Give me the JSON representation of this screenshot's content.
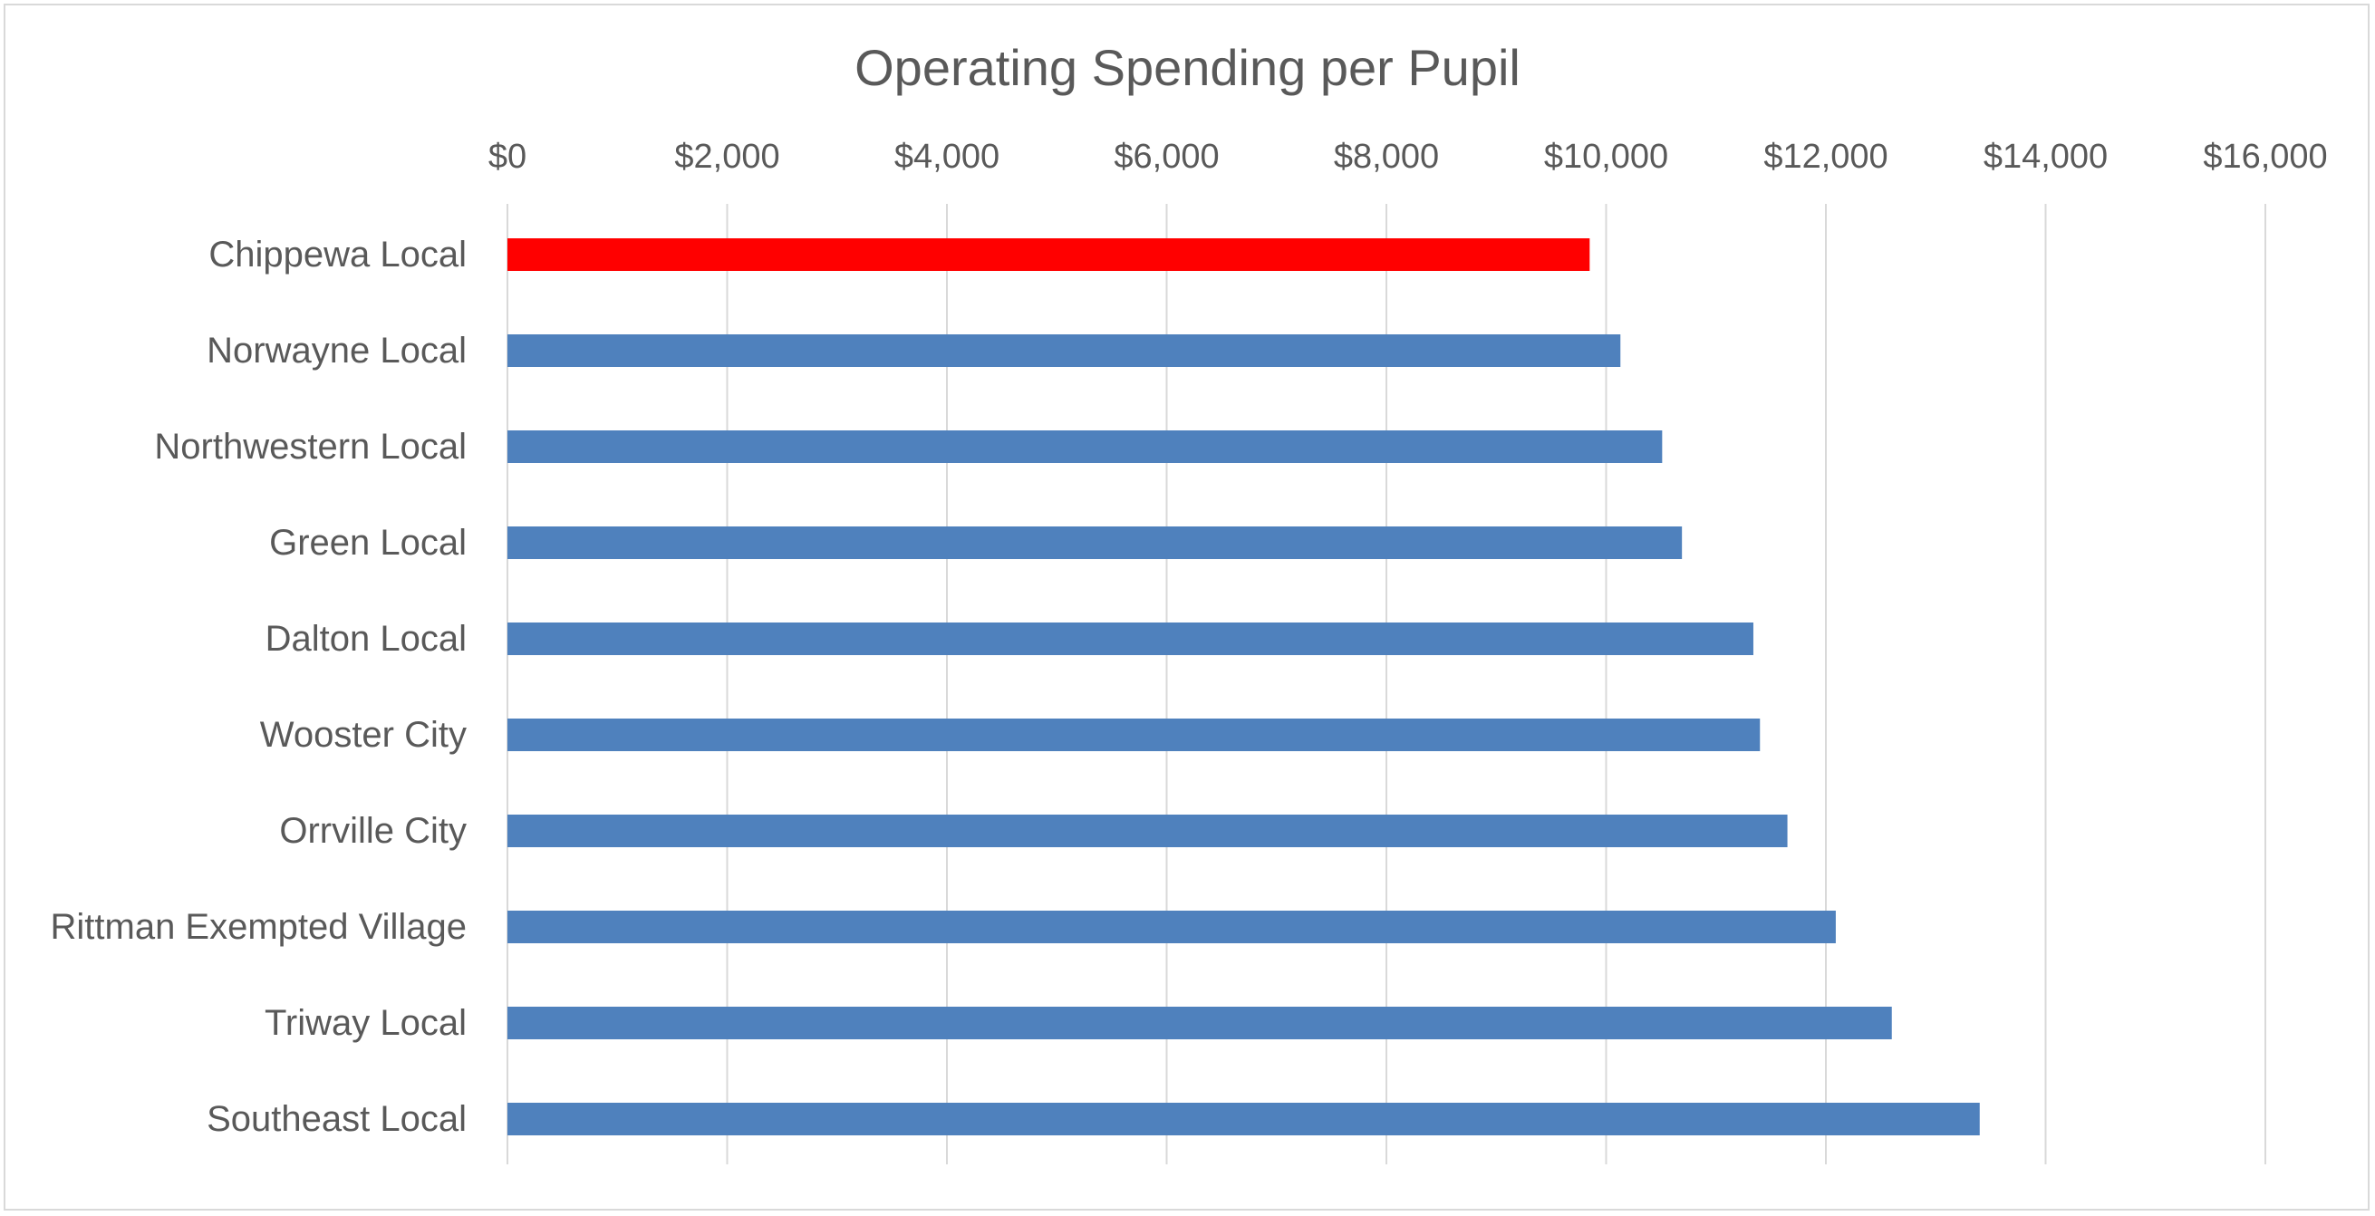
{
  "chart_data": {
    "type": "bar",
    "orientation": "horizontal",
    "title": "Operating Spending per Pupil",
    "xlabel": "",
    "ylabel": "",
    "xlim": [
      0,
      16000
    ],
    "x_axis_position": "top",
    "x_ticks": [
      "$0",
      "$2,000",
      "$4,000",
      "$6,000",
      "$8,000",
      "$10,000",
      "$12,000",
      "$14,000",
      "$16,000"
    ],
    "x_tick_values": [
      0,
      2000,
      4000,
      6000,
      8000,
      10000,
      12000,
      14000,
      16000
    ],
    "grid": true,
    "legend": "none",
    "categories": [
      "Chippewa Local",
      "Norwayne Local",
      "Northwestern Local",
      "Green Local",
      "Dalton Local",
      "Wooster City",
      "Orrville City",
      "Rittman Exempted Village",
      "Triway Local",
      "Southeast Local"
    ],
    "values": [
      9850,
      10130,
      10510,
      10690,
      11340,
      11400,
      11650,
      12090,
      12600,
      13400
    ],
    "colors": [
      "#ff0000",
      "#4f81bd",
      "#4f81bd",
      "#4f81bd",
      "#4f81bd",
      "#4f81bd",
      "#4f81bd",
      "#4f81bd",
      "#4f81bd",
      "#4f81bd"
    ],
    "highlight_color": "#ff0000",
    "bar_color": "#4f81bd",
    "grid_color": "#d9d9d9",
    "text_color": "#595959"
  }
}
